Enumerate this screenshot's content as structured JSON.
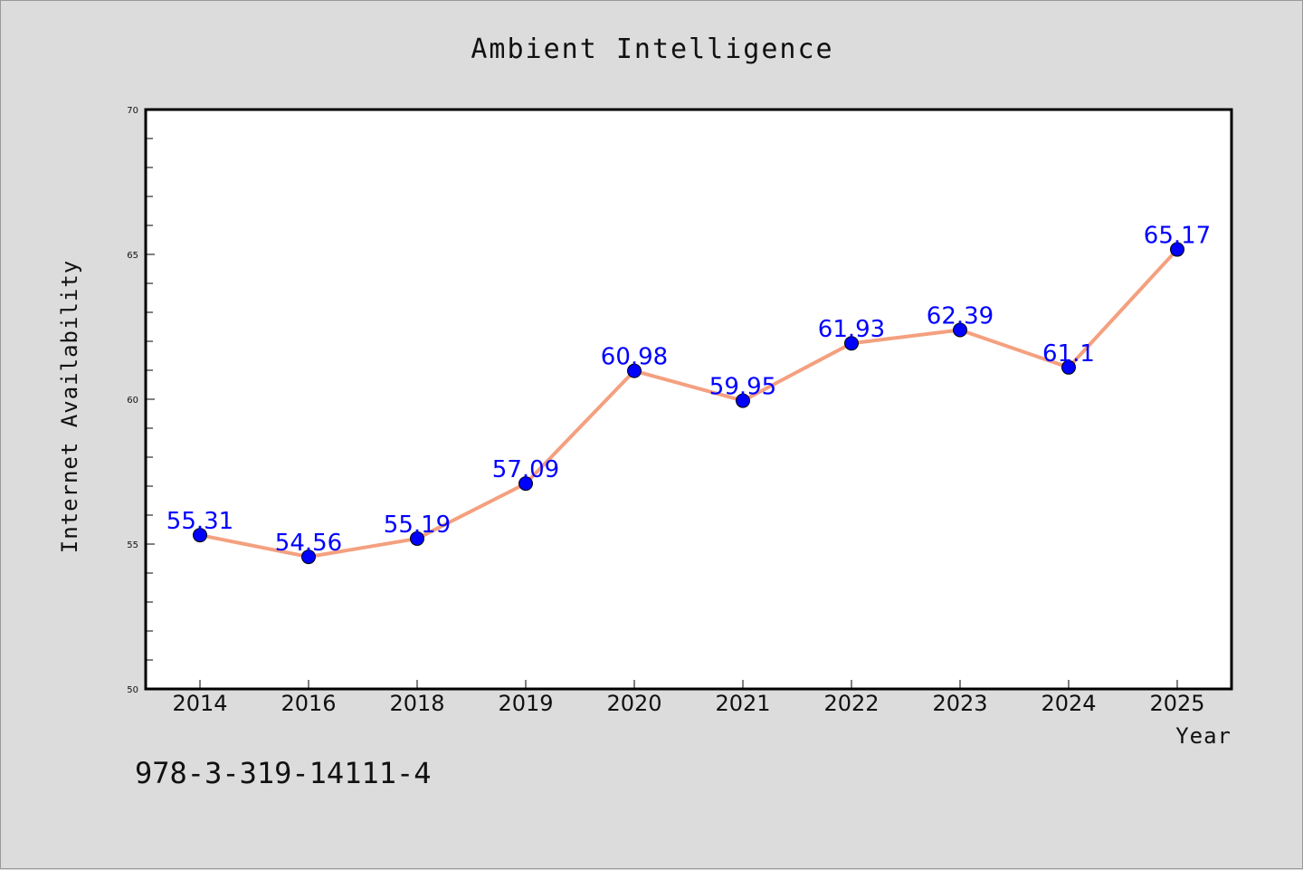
{
  "chart_data": {
    "type": "line",
    "title": "Ambient Intelligence",
    "xlabel": "Year",
    "ylabel": "Internet Availability",
    "categories": [
      "2014",
      "2016",
      "2018",
      "2019",
      "2020",
      "2021",
      "2022",
      "2023",
      "2024",
      "2025"
    ],
    "values": [
      55.31,
      54.56,
      55.19,
      57.09,
      60.98,
      59.95,
      61.93,
      62.39,
      61.1,
      65.17
    ],
    "data_labels": [
      "55.31",
      "54.56",
      "55.19",
      "57.09",
      "60.98",
      "59.95",
      "61.93",
      "62.39",
      "61.1",
      "65.17"
    ],
    "ylim": [
      50,
      70
    ],
    "y_ticks": [
      "50",
      "55",
      "60",
      "65",
      "70"
    ],
    "grid": false,
    "legend": "none",
    "colors": {
      "line": "#f4a07f",
      "marker": "#0000ff",
      "data_label": "#0000ff",
      "plot_background": "#ffffff",
      "figure_background": "#dcdcdc"
    }
  },
  "footer": {
    "isbn": "978-3-319-14111-4"
  }
}
